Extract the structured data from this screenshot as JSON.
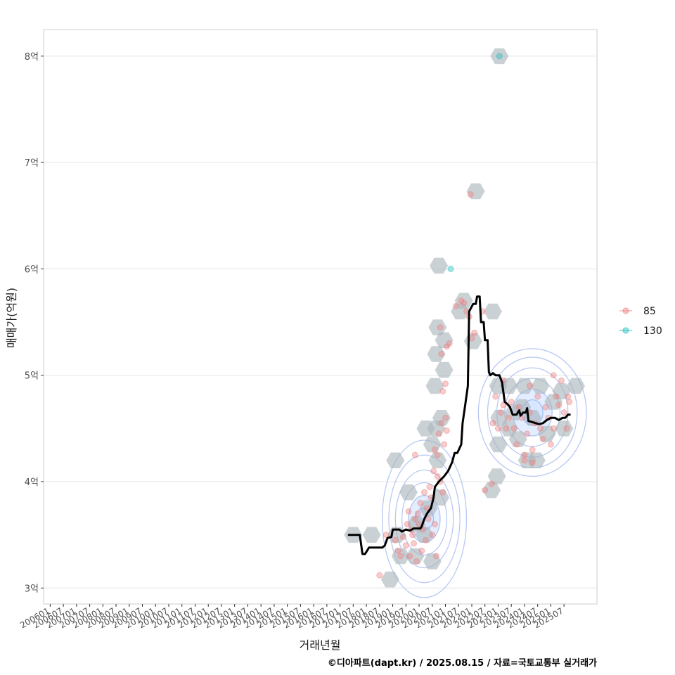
{
  "colors": {
    "grid": "#e5e5e5",
    "panel_border": "#cccccc",
    "series_85": "#f08080",
    "series_130": "#20c0c0",
    "hex": "#a9b4bc",
    "contour": "#7d9ce8",
    "contour_fill": "#cfe2ff",
    "line": "#000000"
  },
  "chart_data": {
    "type": "scatter",
    "title": "",
    "xlabel": "거래년월",
    "ylabel": "매매가(억원)",
    "ylim": [
      2.85,
      8.25
    ],
    "xlim": [
      2005.75,
      2026.75
    ],
    "grid": true,
    "legend_position": "right",
    "y_ticks": [
      {
        "value": 3,
        "label": "3억"
      },
      {
        "value": 4,
        "label": "4억"
      },
      {
        "value": 5,
        "label": "5억"
      },
      {
        "value": 6,
        "label": "6억"
      },
      {
        "value": 7,
        "label": "7억"
      },
      {
        "value": 8,
        "label": "8억"
      }
    ],
    "x_ticks": [
      {
        "value": 2006.0,
        "label": "200601"
      },
      {
        "value": 2006.5,
        "label": "200607"
      },
      {
        "value": 2007.0,
        "label": "200701"
      },
      {
        "value": 2007.5,
        "label": "200707"
      },
      {
        "value": 2008.0,
        "label": "200801"
      },
      {
        "value": 2008.5,
        "label": "200807"
      },
      {
        "value": 2009.0,
        "label": "200901"
      },
      {
        "value": 2009.5,
        "label": "200907"
      },
      {
        "value": 2010.0,
        "label": "201001"
      },
      {
        "value": 2010.5,
        "label": "201007"
      },
      {
        "value": 2011.0,
        "label": "201101"
      },
      {
        "value": 2011.5,
        "label": "201107"
      },
      {
        "value": 2012.0,
        "label": "201201"
      },
      {
        "value": 2012.5,
        "label": "201207"
      },
      {
        "value": 2013.0,
        "label": "201301"
      },
      {
        "value": 2013.5,
        "label": "201307"
      },
      {
        "value": 2014.0,
        "label": "201401"
      },
      {
        "value": 2014.5,
        "label": "201407"
      },
      {
        "value": 2015.0,
        "label": "201501"
      },
      {
        "value": 2015.5,
        "label": "201507"
      },
      {
        "value": 2016.0,
        "label": "201601"
      },
      {
        "value": 2016.5,
        "label": "201607"
      },
      {
        "value": 2017.0,
        "label": "201701"
      },
      {
        "value": 2017.5,
        "label": "201707"
      },
      {
        "value": 2018.0,
        "label": "201801"
      },
      {
        "value": 2018.5,
        "label": "201807"
      },
      {
        "value": 2019.0,
        "label": "201901"
      },
      {
        "value": 2019.5,
        "label": "201907"
      },
      {
        "value": 2020.0,
        "label": "202001"
      },
      {
        "value": 2020.5,
        "label": "202007"
      },
      {
        "value": 2021.0,
        "label": "202101"
      },
      {
        "value": 2021.5,
        "label": "202107"
      },
      {
        "value": 2022.0,
        "label": "202201"
      },
      {
        "value": 2022.5,
        "label": "202207"
      },
      {
        "value": 2023.0,
        "label": "202301"
      },
      {
        "value": 2023.5,
        "label": "202307"
      },
      {
        "value": 2024.0,
        "label": "202401"
      },
      {
        "value": 2024.5,
        "label": "202407"
      },
      {
        "value": 2025.0,
        "label": "202501"
      },
      {
        "value": 2025.5,
        "label": "202507"
      }
    ],
    "legend": [
      {
        "label": "85",
        "series": "85"
      },
      {
        "label": "130",
        "series": "130"
      }
    ],
    "series": [
      {
        "name": "85",
        "points": [
          [
            2018.5,
            3.12
          ],
          [
            2018.75,
            3.5
          ],
          [
            2019.1,
            3.45
          ],
          [
            2019.2,
            3.35
          ],
          [
            2019.3,
            3.3
          ],
          [
            2019.4,
            3.48
          ],
          [
            2019.5,
            3.4
          ],
          [
            2019.55,
            3.6
          ],
          [
            2019.6,
            3.72
          ],
          [
            2019.65,
            3.3
          ],
          [
            2019.7,
            3.55
          ],
          [
            2019.75,
            3.5
          ],
          [
            2019.8,
            3.42
          ],
          [
            2019.85,
            3.65
          ],
          [
            2019.9,
            3.25
          ],
          [
            2019.95,
            3.7
          ],
          [
            2020.0,
            3.6
          ],
          [
            2020.05,
            3.8
          ],
          [
            2020.1,
            3.35
          ],
          [
            2020.15,
            3.55
          ],
          [
            2020.2,
            3.9
          ],
          [
            2020.25,
            3.45
          ],
          [
            2020.3,
            3.75
          ],
          [
            2020.35,
            3.65
          ],
          [
            2020.4,
            3.95
          ],
          [
            2020.45,
            3.85
          ],
          [
            2020.5,
            3.5
          ],
          [
            2020.55,
            4.1
          ],
          [
            2020.6,
            3.6
          ],
          [
            2020.65,
            3.3
          ],
          [
            2020.7,
            4.25
          ],
          [
            2020.75,
            4.45
          ],
          [
            2020.8,
            4.0
          ],
          [
            2020.85,
            4.55
          ],
          [
            2020.9,
            3.9
          ],
          [
            2020.95,
            4.35
          ],
          [
            2021.0,
            4.6
          ],
          [
            2021.05,
            4.48
          ],
          [
            2020.6,
            4.3
          ],
          [
            2020.7,
            4.05
          ],
          [
            2019.85,
            4.25
          ],
          [
            2020.8,
            5.45
          ],
          [
            2020.85,
            5.2
          ],
          [
            2020.9,
            4.85
          ],
          [
            2021.0,
            4.92
          ],
          [
            2021.05,
            5.27
          ],
          [
            2021.15,
            5.3
          ],
          [
            2021.4,
            5.65
          ],
          [
            2021.6,
            5.7
          ],
          [
            2021.7,
            5.68
          ],
          [
            2021.8,
            5.6
          ],
          [
            2021.9,
            5.55
          ],
          [
            2022.0,
            5.35
          ],
          [
            2022.1,
            5.4
          ],
          [
            2022.4,
            5.6
          ],
          [
            2021.95,
            6.7
          ],
          [
            2022.8,
            4.55
          ],
          [
            2022.9,
            4.8
          ],
          [
            2023.0,
            4.5
          ],
          [
            2023.1,
            4.65
          ],
          [
            2023.2,
            4.72
          ],
          [
            2023.3,
            4.5
          ],
          [
            2023.4,
            4.6
          ],
          [
            2023.5,
            4.75
          ],
          [
            2023.6,
            4.5
          ],
          [
            2023.7,
            4.35
          ],
          [
            2023.8,
            4.7
          ],
          [
            2023.9,
            4.6
          ],
          [
            2024.0,
            4.2
          ],
          [
            2024.1,
            4.45
          ],
          [
            2024.2,
            4.65
          ],
          [
            2024.3,
            4.3
          ],
          [
            2024.4,
            4.55
          ],
          [
            2024.5,
            4.8
          ],
          [
            2024.6,
            4.5
          ],
          [
            2024.7,
            4.4
          ],
          [
            2024.8,
            4.7
          ],
          [
            2024.9,
            4.6
          ],
          [
            2025.0,
            4.35
          ],
          [
            2025.1,
            4.5
          ],
          [
            2025.2,
            4.8
          ],
          [
            2025.3,
            4.72
          ],
          [
            2025.4,
            4.95
          ],
          [
            2025.5,
            4.65
          ],
          [
            2025.6,
            4.5
          ],
          [
            2025.65,
            4.8
          ],
          [
            2025.7,
            4.75
          ],
          [
            2025.1,
            5.0
          ],
          [
            2024.2,
            4.9
          ],
          [
            2024.0,
            4.25
          ],
          [
            2022.75,
            3.98
          ],
          [
            2022.5,
            3.92
          ],
          [
            2023.2,
            4.95
          ],
          [
            2024.3,
            4.18
          ]
        ]
      },
      {
        "name": "130",
        "points": [
          [
            2021.2,
            6.0
          ],
          [
            2023.05,
            8.0
          ]
        ]
      }
    ],
    "hexbins": [
      [
        2017.5,
        3.5
      ],
      [
        2018.2,
        3.5
      ],
      [
        2018.9,
        3.08
      ],
      [
        2019.1,
        4.2
      ],
      [
        2019.15,
        3.5
      ],
      [
        2019.3,
        3.3
      ],
      [
        2019.6,
        3.9
      ],
      [
        2019.85,
        3.3
      ],
      [
        2019.9,
        3.6
      ],
      [
        2020.2,
        3.5
      ],
      [
        2020.5,
        3.25
      ],
      [
        2020.35,
        3.75
      ],
      [
        2020.25,
        4.5
      ],
      [
        2020.5,
        4.35
      ],
      [
        2020.65,
        4.5
      ],
      [
        2020.7,
        4.2
      ],
      [
        2020.8,
        3.85
      ],
      [
        2020.85,
        4.6
      ],
      [
        2020.6,
        4.9
      ],
      [
        2020.65,
        5.2
      ],
      [
        2020.7,
        5.45
      ],
      [
        2020.95,
        5.05
      ],
      [
        2020.95,
        5.33
      ],
      [
        2020.75,
        6.03
      ],
      [
        2021.55,
        5.6
      ],
      [
        2021.7,
        5.7
      ],
      [
        2022.05,
        5.32
      ],
      [
        2022.15,
        6.73
      ],
      [
        2022.8,
        5.6
      ],
      [
        2022.95,
        4.05
      ],
      [
        2022.75,
        3.92
      ],
      [
        2023.0,
        4.9
      ],
      [
        2023.0,
        4.35
      ],
      [
        2023.05,
        4.6
      ],
      [
        2023.4,
        4.9
      ],
      [
        2023.6,
        4.65
      ],
      [
        2023.75,
        4.4
      ],
      [
        2024.1,
        4.2
      ],
      [
        2024.45,
        4.2
      ],
      [
        2024.0,
        4.9
      ],
      [
        2024.3,
        4.6
      ],
      [
        2024.6,
        4.9
      ],
      [
        2024.85,
        4.45
      ],
      [
        2025.1,
        4.75
      ],
      [
        2025.5,
        4.5
      ],
      [
        2025.95,
        4.9
      ],
      [
        2023.05,
        8.0
      ],
      [
        2025.4,
        4.85
      ],
      [
        2023.4,
        4.5
      ],
      [
        2023.9,
        4.7
      ]
    ],
    "contours": [
      {
        "cx": 2020.2,
        "cy": 3.65,
        "rx": [
          0.35,
          0.6,
          0.85,
          1.1,
          1.35,
          1.6
        ],
        "ry": [
          0.1,
          0.22,
          0.34,
          0.46,
          0.6,
          0.74
        ],
        "fill_levels": [
          0,
          1
        ]
      },
      {
        "cx": 2024.3,
        "cy": 4.65,
        "rx": [
          0.4,
          0.75,
          1.05,
          1.35,
          1.7,
          2.05
        ],
        "ry": [
          0.12,
          0.22,
          0.32,
          0.42,
          0.52,
          0.6
        ],
        "fill_levels": [
          0,
          1
        ]
      }
    ],
    "median_line": [
      [
        2017.3,
        3.5
      ],
      [
        2017.75,
        3.5
      ],
      [
        2017.85,
        3.32
      ],
      [
        2017.95,
        3.32
      ],
      [
        2018.1,
        3.38
      ],
      [
        2018.6,
        3.38
      ],
      [
        2018.7,
        3.4
      ],
      [
        2018.8,
        3.47
      ],
      [
        2018.95,
        3.48
      ],
      [
        2019.0,
        3.55
      ],
      [
        2019.25,
        3.55
      ],
      [
        2019.35,
        3.53
      ],
      [
        2019.5,
        3.55
      ],
      [
        2019.65,
        3.54
      ],
      [
        2019.8,
        3.56
      ],
      [
        2020.05,
        3.56
      ],
      [
        2020.1,
        3.58
      ],
      [
        2020.2,
        3.65
      ],
      [
        2020.3,
        3.7
      ],
      [
        2020.45,
        3.75
      ],
      [
        2020.55,
        3.85
      ],
      [
        2020.6,
        3.95
      ],
      [
        2020.75,
        4.0
      ],
      [
        2020.95,
        4.05
      ],
      [
        2021.1,
        4.1
      ],
      [
        2021.25,
        4.18
      ],
      [
        2021.35,
        4.27
      ],
      [
        2021.45,
        4.27
      ],
      [
        2021.6,
        4.35
      ],
      [
        2021.65,
        4.55
      ],
      [
        2021.75,
        4.72
      ],
      [
        2021.85,
        4.9
      ],
      [
        2021.9,
        5.6
      ],
      [
        2022.05,
        5.67
      ],
      [
        2022.15,
        5.67
      ],
      [
        2022.2,
        5.74
      ],
      [
        2022.3,
        5.74
      ],
      [
        2022.35,
        5.5
      ],
      [
        2022.45,
        5.5
      ],
      [
        2022.5,
        5.33
      ],
      [
        2022.6,
        5.33
      ],
      [
        2022.65,
        5.03
      ],
      [
        2022.7,
        5.0
      ],
      [
        2022.8,
        5.02
      ],
      [
        2022.9,
        5.0
      ],
      [
        2023.05,
        5.0
      ],
      [
        2023.15,
        4.93
      ],
      [
        2023.25,
        4.75
      ],
      [
        2023.35,
        4.73
      ],
      [
        2023.45,
        4.7
      ],
      [
        2023.55,
        4.63
      ],
      [
        2023.7,
        4.63
      ],
      [
        2023.8,
        4.67
      ],
      [
        2023.85,
        4.62
      ],
      [
        2023.95,
        4.65
      ],
      [
        2024.05,
        4.65
      ],
      [
        2024.1,
        4.69
      ],
      [
        2024.15,
        4.57
      ],
      [
        2024.3,
        4.56
      ],
      [
        2024.55,
        4.54
      ],
      [
        2024.7,
        4.55
      ],
      [
        2024.85,
        4.58
      ],
      [
        2025.0,
        4.6
      ],
      [
        2025.15,
        4.6
      ],
      [
        2025.3,
        4.58
      ],
      [
        2025.45,
        4.6
      ],
      [
        2025.55,
        4.6
      ],
      [
        2025.65,
        4.63
      ],
      [
        2025.75,
        4.63
      ]
    ]
  },
  "caption": "©디아파트(dapt.kr) / 2025.08.15 / 자료=국토교통부 실거래가"
}
